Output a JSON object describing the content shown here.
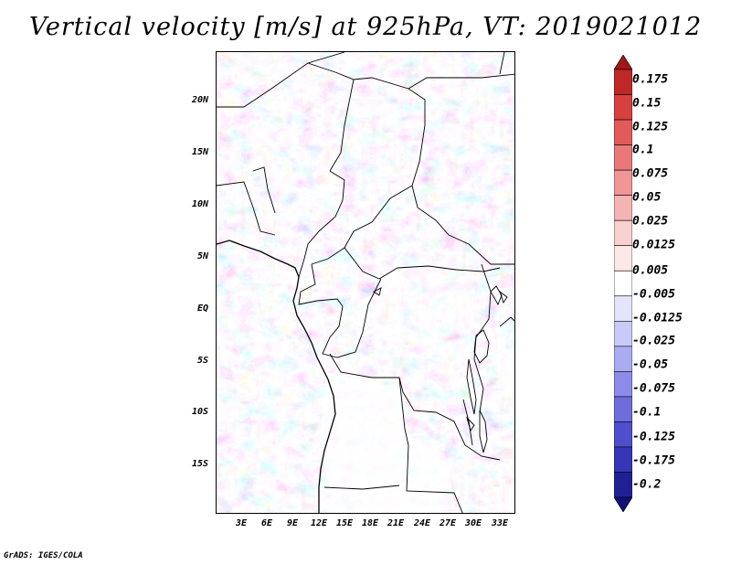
{
  "title": "Vertical velocity [m/s] at 925hPa, VT: 2019021012",
  "credit": "GrADS: IGES/COLA",
  "map": {
    "variable": "Vertical velocity",
    "units": "m/s",
    "level": "925hPa",
    "valid_time": "2019021012",
    "lat_labels": [
      "20N",
      "15N",
      "10N",
      "5N",
      "EQ",
      "5S",
      "10S",
      "15S"
    ],
    "lon_labels": [
      "3E",
      "6E",
      "9E",
      "12E",
      "15E",
      "18E",
      "21E",
      "24E",
      "27E",
      "30E",
      "33E"
    ]
  },
  "colorbar": {
    "labels": [
      "0.175",
      "0.15",
      "0.125",
      "0.1",
      "0.075",
      "0.05",
      "0.025",
      "0.0125",
      "0.005",
      "-0.005",
      "-0.0125",
      "-0.025",
      "-0.05",
      "-0.075",
      "-0.1",
      "-0.125",
      "-0.175",
      "-0.2"
    ],
    "colors": [
      "#a01818",
      "#c02828",
      "#d84040",
      "#e25a5a",
      "#ea7878",
      "#f09696",
      "#f5b4b4",
      "#f9d0d0",
      "#fde8e8",
      "#ffffff",
      "#e4e4fc",
      "#cacaf8",
      "#ababf2",
      "#8c8ce8",
      "#6d6ddc",
      "#4f4fce",
      "#3636b6",
      "#202096",
      "#10107a"
    ]
  }
}
